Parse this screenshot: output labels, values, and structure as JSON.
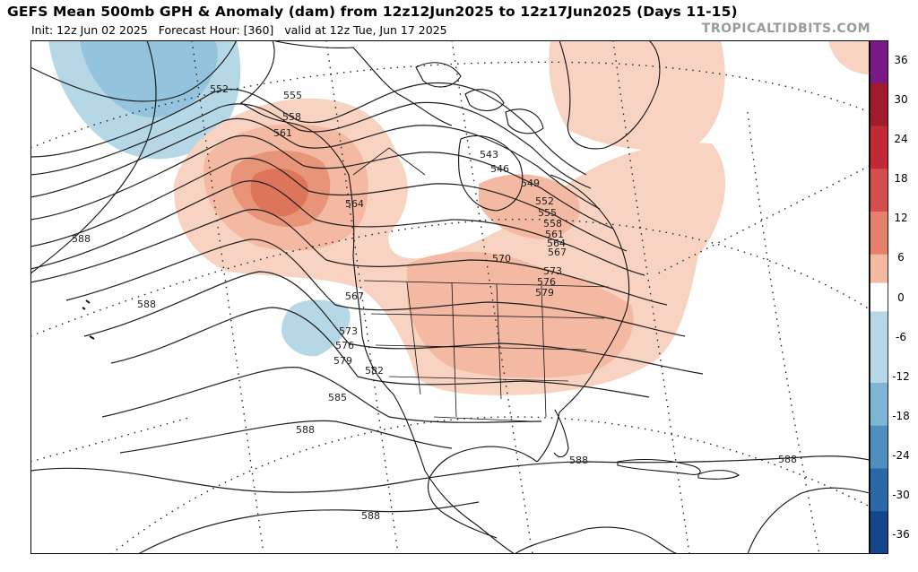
{
  "header": {
    "title": "GEFS Mean 500mb GPH & Anomaly (dam) from 12z12Jun2025 to 12z17Jun2025 (Days 11-15)",
    "init": "Init: 12z Jun 02 2025",
    "forecast_hour": "Forecast Hour: [360]",
    "valid": "valid at 12z Tue, Jun 17 2025",
    "credit": "TROPICALTIDBITS.COM"
  },
  "colorbar": {
    "ticks": [
      "36",
      "30",
      "24",
      "18",
      "12",
      "6",
      "0",
      "-6",
      "-12",
      "-18",
      "-24",
      "-30",
      "-36"
    ],
    "colors": {
      "36": "#7a1a88",
      "30": "#a01c2c",
      "24": "#c02a36",
      "18": "#d44e4e",
      "12": "#e4806c",
      "6": "#f3b9a2",
      "neutral": "#ffffff",
      "-6": "#b5d7e6",
      "-12": "#7fb5d4",
      "-18": "#4e8fc0",
      "-24": "#2a68a8",
      "-30": "#15458a",
      "-36": "#0a2560"
    }
  },
  "contours": {
    "labels": [
      "552",
      "555",
      "558",
      "561",
      "564",
      "567",
      "570",
      "573",
      "576",
      "579",
      "582",
      "585",
      "588",
      "543",
      "546",
      "549",
      "552",
      "555",
      "558",
      "561",
      "564",
      "567",
      "570",
      "573",
      "576",
      "579",
      "588",
      "588",
      "588",
      "588",
      "567",
      "573",
      "576",
      "579",
      "582",
      "585",
      "588"
    ]
  },
  "map": {
    "features": [
      "north-america",
      "greenland",
      "hudson-bay",
      "caribbean-islands",
      "state-borders",
      "latitude-longitude-grid"
    ]
  }
}
